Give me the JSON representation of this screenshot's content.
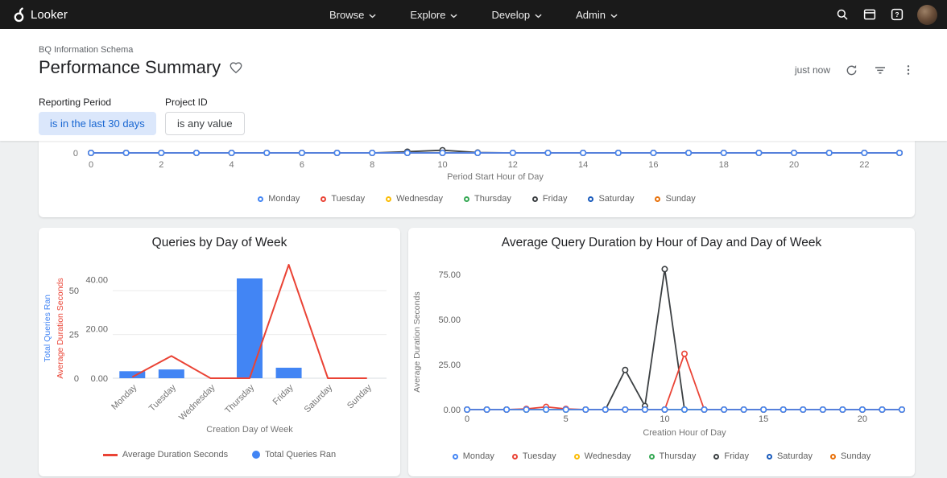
{
  "topbar": {
    "brand": "Looker",
    "nav": [
      {
        "label": "Browse"
      },
      {
        "label": "Explore"
      },
      {
        "label": "Develop"
      },
      {
        "label": "Admin"
      }
    ],
    "icons": [
      "looker-logo-icon",
      "chevron-down-icon",
      "search-icon",
      "browser-window-icon",
      "help-icon",
      "user-avatar"
    ]
  },
  "header": {
    "breadcrumb": "BQ Information Schema",
    "title": "Performance Summary",
    "favorite_icon": "heart-outline-icon",
    "last_refresh": "just now",
    "action_icons": [
      "refresh-icon",
      "filter-list-icon",
      "more-vert-icon"
    ]
  },
  "filters": [
    {
      "label": "Reporting Period",
      "value": "is in the last 30 days",
      "active": true
    },
    {
      "label": "Project ID",
      "value": "is any value",
      "active": false
    }
  ],
  "colors": {
    "accent": "#1a73e8",
    "chip_bg": "#dbe7fb",
    "topbar_bg": "#1a1a1a",
    "page_bg": "#eef0f1"
  },
  "chart_data": [
    {
      "id": "queries-by-hour-top",
      "type": "line",
      "title": "",
      "xlabel": "Period Start Hour of Day",
      "x_range": [
        0,
        23
      ],
      "x_ticks": [
        0,
        2,
        4,
        6,
        8,
        10,
        12,
        14,
        16,
        18,
        20,
        22
      ],
      "ylim": [
        0,
        5
      ],
      "y_ticks": [
        {
          "v": 0,
          "label": "0"
        }
      ],
      "legend_position": "bottom",
      "series": [
        {
          "name": "Monday",
          "color": "#4285f4",
          "values": [
            0,
            0,
            0,
            0,
            0,
            0,
            0,
            0,
            0,
            0,
            0,
            0,
            0,
            0,
            0,
            0,
            0,
            0,
            0,
            0,
            0,
            0,
            0,
            0
          ]
        },
        {
          "name": "Tuesday",
          "color": "#ea4335",
          "values": [
            0,
            0,
            0,
            0,
            0,
            0,
            0,
            0,
            0,
            0,
            0,
            0,
            0,
            0,
            0,
            0,
            0,
            0,
            0,
            0,
            0,
            0,
            0,
            0
          ]
        },
        {
          "name": "Wednesday",
          "color": "#fbbc04",
          "values": [
            0,
            0,
            0,
            0,
            0,
            0,
            0,
            0,
            0,
            0,
            0,
            0,
            0,
            0,
            0,
            0,
            0,
            0,
            0,
            0,
            0,
            0,
            0,
            0
          ]
        },
        {
          "name": "Thursday",
          "color": "#34a853",
          "values": [
            0,
            0,
            0,
            0,
            0,
            0,
            0,
            0,
            0,
            0,
            0,
            0,
            0,
            0,
            0,
            0,
            0,
            0,
            0,
            0,
            0,
            0,
            0,
            0
          ]
        },
        {
          "name": "Friday",
          "color": "#3c4043",
          "values": [
            0,
            0,
            0,
            0,
            0,
            0,
            0,
            0,
            0,
            0.5,
            1.1,
            0.15,
            0,
            0,
            0,
            0,
            0,
            0,
            0,
            0,
            0,
            0,
            0,
            0
          ]
        },
        {
          "name": "Saturday",
          "color": "#185abc",
          "values": [
            0,
            0,
            0,
            0,
            0,
            0,
            0,
            0,
            0,
            0,
            0,
            0,
            0,
            0,
            0,
            0,
            0,
            0,
            0,
            0,
            0,
            0,
            0,
            0
          ]
        },
        {
          "name": "Sunday",
          "color": "#e8710a",
          "values": [
            0,
            0,
            0,
            0,
            0,
            0,
            0,
            0,
            0,
            0,
            0,
            0,
            0,
            0,
            0,
            0,
            0,
            0,
            0,
            0,
            0,
            0,
            0,
            0
          ]
        }
      ]
    },
    {
      "id": "queries-by-day-of-week",
      "type": "combo",
      "title": "Queries by Day of Week",
      "xlabel": "Creation Day of Week",
      "categories": [
        "Monday",
        "Tuesday",
        "Wednesday",
        "Thursday",
        "Friday",
        "Saturday",
        "Sunday"
      ],
      "bar_series": {
        "name": "Total Queries Ran",
        "color": "#4285f4",
        "values": [
          4,
          5,
          0,
          57,
          6,
          0,
          0
        ],
        "axis_label": "Total Queries Ran",
        "ticks": [
          {
            "v": 0,
            "label": "0"
          },
          {
            "v": 25,
            "label": "25"
          },
          {
            "v": 50,
            "label": "50"
          }
        ],
        "ylim": [
          0,
          57
        ]
      },
      "line_series": {
        "name": "Average Duration Seconds",
        "color": "#ea4335",
        "values": [
          0.5,
          9,
          0,
          0,
          46,
          0,
          0
        ],
        "axis_label": "Average Duration Seconds",
        "ticks": [
          {
            "v": 0,
            "label": "0.00"
          },
          {
            "v": 20,
            "label": "20.00"
          },
          {
            "v": 40,
            "label": "40.00"
          }
        ],
        "ylim": [
          0,
          46
        ]
      },
      "legend": [
        {
          "label": "Average Duration Seconds",
          "color": "#ea4335",
          "shape": "line"
        },
        {
          "label": "Total Queries Ran",
          "color": "#4285f4",
          "shape": "dot"
        }
      ]
    },
    {
      "id": "avg-duration-by-hour",
      "type": "line",
      "title": "Average Query Duration by Hour of Day and Day of Week",
      "xlabel": "Creation Hour of Day",
      "ylabel": "Average Duration Seconds",
      "x_range": [
        0,
        22
      ],
      "x_ticks": [
        0,
        5,
        10,
        15,
        20
      ],
      "ylim": [
        0,
        84
      ],
      "y_ticks": [
        {
          "v": 0,
          "label": "0.00"
        },
        {
          "v": 25,
          "label": "25.00"
        },
        {
          "v": 50,
          "label": "50.00"
        },
        {
          "v": 75,
          "label": "75.00"
        }
      ],
      "legend_position": "bottom",
      "series": [
        {
          "name": "Monday",
          "color": "#4285f4",
          "values": [
            0,
            0,
            0,
            0,
            0,
            0,
            0,
            0,
            0,
            0,
            0,
            0,
            0,
            0,
            0,
            0,
            0,
            0,
            0,
            0,
            0,
            0,
            0
          ]
        },
        {
          "name": "Tuesday",
          "color": "#ea4335",
          "values": [
            0,
            0,
            0,
            0.4,
            1.5,
            0.4,
            0,
            0,
            0,
            0,
            0,
            31,
            0,
            0,
            0,
            0,
            0,
            0,
            0,
            0,
            0,
            0,
            0
          ]
        },
        {
          "name": "Wednesday",
          "color": "#fbbc04",
          "values": [
            0,
            0,
            0,
            0,
            0,
            0,
            0,
            0,
            0,
            0,
            0,
            0,
            0,
            0,
            0,
            0,
            0,
            0,
            0,
            0,
            0,
            0,
            0
          ]
        },
        {
          "name": "Thursday",
          "color": "#34a853",
          "values": [
            0,
            0,
            0,
            0,
            0,
            0,
            0,
            0,
            0,
            0,
            0,
            0,
            0,
            0,
            0,
            0,
            0,
            0,
            0,
            0,
            0,
            0,
            0
          ]
        },
        {
          "name": "Friday",
          "color": "#3c4043",
          "values": [
            0,
            0,
            0,
            0,
            0,
            0,
            0,
            0,
            22,
            2,
            78,
            0,
            0,
            0,
            0,
            0,
            0,
            0,
            0,
            0,
            0,
            0,
            0
          ]
        },
        {
          "name": "Saturday",
          "color": "#185abc",
          "values": [
            0,
            0,
            0,
            0,
            0,
            0,
            0,
            0,
            0,
            0,
            0,
            0,
            0,
            0,
            0,
            0,
            0,
            0,
            0,
            0,
            0,
            0,
            0
          ]
        },
        {
          "name": "Sunday",
          "color": "#e8710a",
          "values": [
            0,
            0,
            0,
            0,
            0,
            0,
            0,
            0,
            0,
            0,
            0,
            0,
            0,
            0,
            0,
            0,
            0,
            0,
            0,
            0,
            0,
            0,
            0
          ]
        }
      ]
    }
  ]
}
